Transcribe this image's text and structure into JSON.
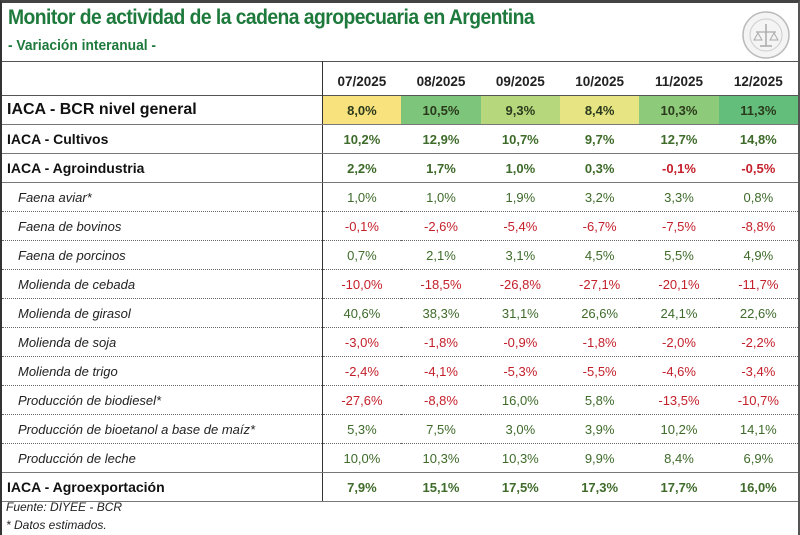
{
  "title": "Monitor de actividad de la cadena agropecuaria en Argentina",
  "subtitle": "- Variación interanual -",
  "logo_text": "Bolsa de Comercio de Rosario",
  "colors": {
    "title": "#1e7a3c",
    "positive": "#3e6b2a",
    "negative": "#c4202b"
  },
  "chart_data": {
    "type": "table",
    "columns": [
      "07/2025",
      "08/2025",
      "09/2025",
      "10/2025",
      "11/2025",
      "12/2025"
    ],
    "rows": [
      {
        "label": "IACA - BCR nivel general",
        "level": "main",
        "values": [
          "8,0%",
          "10,5%",
          "9,3%",
          "8,4%",
          "10,3%",
          "11,3%"
        ],
        "heat_colors": [
          "#f8e27e",
          "#7cc57a",
          "#b6d77c",
          "#e7e583",
          "#8dca7a",
          "#63be7b"
        ]
      },
      {
        "label": "IACA - Cultivos",
        "level": "main",
        "values": [
          "10,2%",
          "12,9%",
          "10,7%",
          "9,7%",
          "12,7%",
          "14,8%"
        ]
      },
      {
        "label": "IACA - Agroindustria",
        "level": "main",
        "values": [
          "2,2%",
          "1,7%",
          "1,0%",
          "0,3%",
          "-0,1%",
          "-0,5%"
        ]
      },
      {
        "label": "Faena aviar*",
        "level": "sub",
        "values": [
          "1,0%",
          "1,0%",
          "1,9%",
          "3,2%",
          "3,3%",
          "0,8%"
        ]
      },
      {
        "label": "Faena de bovinos",
        "level": "sub",
        "values": [
          "-0,1%",
          "-2,6%",
          "-5,4%",
          "-6,7%",
          "-7,5%",
          "-8,8%"
        ]
      },
      {
        "label": "Faena de porcinos",
        "level": "sub",
        "values": [
          "0,7%",
          "2,1%",
          "3,1%",
          "4,5%",
          "5,5%",
          "4,9%"
        ]
      },
      {
        "label": "Molienda de cebada",
        "level": "sub",
        "values": [
          "-10,0%",
          "-18,5%",
          "-26,8%",
          "-27,1%",
          "-20,1%",
          "-11,7%"
        ]
      },
      {
        "label": "Molienda de girasol",
        "level": "sub",
        "values": [
          "40,6%",
          "38,3%",
          "31,1%",
          "26,6%",
          "24,1%",
          "22,6%"
        ]
      },
      {
        "label": "Molienda de soja",
        "level": "sub",
        "values": [
          "-3,0%",
          "-1,8%",
          "-0,9%",
          "-1,8%",
          "-2,0%",
          "-2,2%"
        ]
      },
      {
        "label": "Molienda de trigo",
        "level": "sub",
        "values": [
          "-2,4%",
          "-4,1%",
          "-5,3%",
          "-5,5%",
          "-4,6%",
          "-3,4%"
        ]
      },
      {
        "label": "Producción de biodiesel*",
        "level": "sub",
        "values": [
          "-27,6%",
          "-8,8%",
          "16,0%",
          "5,8%",
          "-13,5%",
          "-10,7%"
        ]
      },
      {
        "label": "Producción de bioetanol a base de maíz*",
        "level": "sub",
        "values": [
          "5,3%",
          "7,5%",
          "3,0%",
          "3,9%",
          "10,2%",
          "14,1%"
        ]
      },
      {
        "label": "Producción de leche",
        "level": "sub",
        "values": [
          "10,0%",
          "10,3%",
          "10,3%",
          "9,9%",
          "8,4%",
          "6,9%"
        ]
      },
      {
        "label": "IACA - Agroexportación",
        "level": "main",
        "values": [
          "7,9%",
          "15,1%",
          "17,5%",
          "17,3%",
          "17,7%",
          "16,0%"
        ]
      }
    ]
  },
  "footer": {
    "source": "Fuente: DIYEE - BCR",
    "note": "* Datos estimados."
  }
}
